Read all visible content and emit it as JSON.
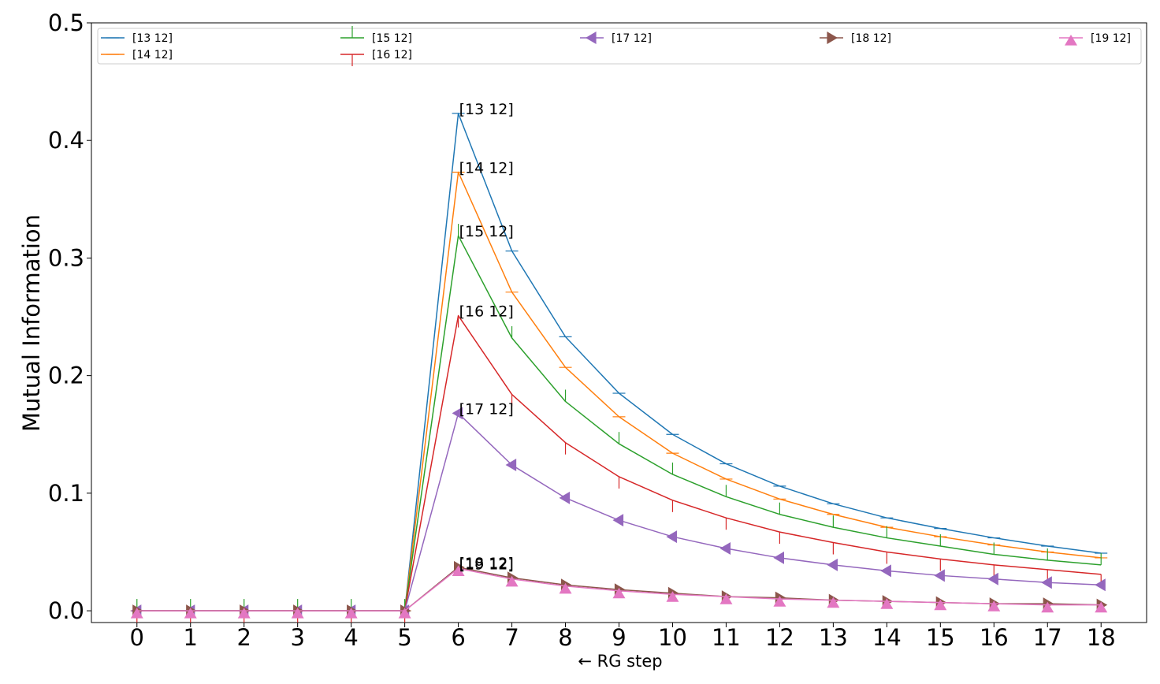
{
  "chart_data": {
    "type": "line",
    "title": "",
    "xlabel": "← RG step",
    "ylabel": "Mutual Information",
    "x": [
      0,
      1,
      2,
      3,
      4,
      5,
      6,
      7,
      8,
      9,
      10,
      11,
      12,
      13,
      14,
      15,
      16,
      17,
      18
    ],
    "xlim": [
      -0.85,
      18.85
    ],
    "ylim": [
      -0.01,
      0.5
    ],
    "xticks": [
      0,
      1,
      2,
      3,
      4,
      5,
      6,
      7,
      8,
      9,
      10,
      11,
      12,
      13,
      14,
      15,
      16,
      17,
      18
    ],
    "yticks": [
      "0.0",
      "0.1",
      "0.2",
      "0.3",
      "0.4",
      "0.5"
    ],
    "grid": false,
    "legend_position": "top",
    "series": [
      {
        "name": "[13 12]",
        "color": "#1f77b4",
        "marker": "hline",
        "values": [
          0,
          0,
          0,
          0,
          0,
          0,
          0.423,
          0.306,
          0.233,
          0.185,
          0.15,
          0.125,
          0.106,
          0.091,
          0.079,
          0.07,
          0.062,
          0.055,
          0.049
        ]
      },
      {
        "name": "[14 12]",
        "color": "#ff7f0e",
        "marker": "hline",
        "values": [
          0,
          0,
          0,
          0,
          0,
          0,
          0.373,
          0.271,
          0.207,
          0.165,
          0.134,
          0.112,
          0.095,
          0.082,
          0.071,
          0.063,
          0.056,
          0.05,
          0.045
        ]
      },
      {
        "name": "[15 12]",
        "color": "#2ca02c",
        "marker": "vline-up",
        "values": [
          0,
          0,
          0,
          0,
          0,
          0,
          0.319,
          0.232,
          0.178,
          0.142,
          0.116,
          0.097,
          0.082,
          0.071,
          0.062,
          0.055,
          0.048,
          0.043,
          0.039
        ]
      },
      {
        "name": "[16 12]",
        "color": "#d62728",
        "marker": "vline-down",
        "values": [
          0,
          0,
          0,
          0,
          0,
          0,
          0.251,
          0.184,
          0.143,
          0.114,
          0.094,
          0.079,
          0.067,
          0.058,
          0.05,
          0.044,
          0.039,
          0.035,
          0.031
        ]
      },
      {
        "name": "[17 12]",
        "color": "#9467bd",
        "marker": "triangle-left",
        "values": [
          0,
          0,
          0,
          0,
          0,
          0,
          0.168,
          0.124,
          0.096,
          0.077,
          0.063,
          0.053,
          0.045,
          0.039,
          0.034,
          0.03,
          0.027,
          0.024,
          0.022
        ]
      },
      {
        "name": "[18 12]",
        "color": "#8c564b",
        "marker": "triangle-right",
        "values": [
          0,
          0,
          0,
          0,
          0,
          0,
          0.037,
          0.028,
          0.022,
          0.018,
          0.015,
          0.012,
          0.011,
          0.009,
          0.008,
          0.007,
          0.006,
          0.006,
          0.005
        ]
      },
      {
        "name": "[19 12]",
        "color": "#e377c2",
        "marker": "triangle-up",
        "values": [
          0,
          0,
          0,
          0,
          0,
          0,
          0.036,
          0.027,
          0.021,
          0.017,
          0.014,
          0.012,
          0.01,
          0.009,
          0.008,
          0.007,
          0.006,
          0.005,
          0.005
        ]
      }
    ],
    "annotations": [
      {
        "text": "[13 12]",
        "x": 6,
        "y": 0.423
      },
      {
        "text": "[14 12]",
        "x": 6,
        "y": 0.373
      },
      {
        "text": "[15 12]",
        "x": 6,
        "y": 0.319
      },
      {
        "text": "[16 12]",
        "x": 6,
        "y": 0.251
      },
      {
        "text": "[17 12]",
        "x": 6,
        "y": 0.168
      },
      {
        "text": "[18 12]",
        "x": 6,
        "y": 0.037
      },
      {
        "text": "[19 12]",
        "x": 6,
        "y": 0.036
      }
    ]
  }
}
